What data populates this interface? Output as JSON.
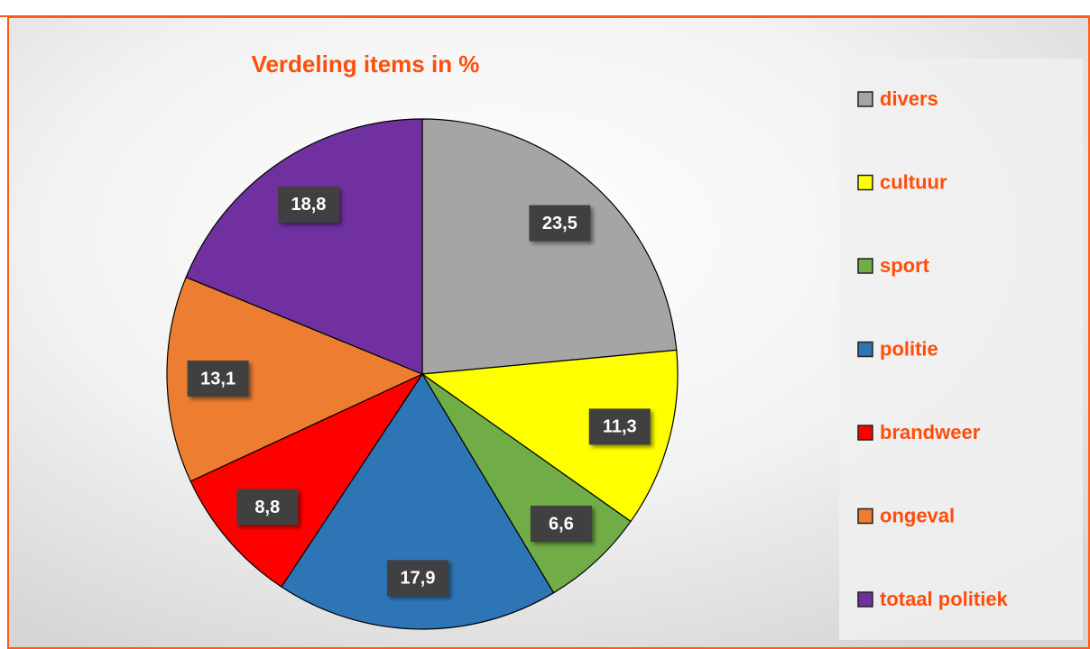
{
  "chart_data": {
    "type": "pie",
    "title": "Verdeling items in %",
    "categories": [
      "divers",
      "cultuur",
      "sport",
      "politie",
      "brandweer",
      "ongeval",
      "totaal politiek"
    ],
    "values": [
      23.5,
      11.3,
      6.6,
      17.9,
      8.8,
      13.1,
      18.8
    ],
    "value_labels": [
      "23,5",
      "11,3",
      "6,6",
      "17,9",
      "8,8",
      "13,1",
      "18,8"
    ],
    "colors": [
      "#a5a5a5",
      "#ffff00",
      "#70ad47",
      "#2e75b6",
      "#ff0000",
      "#ed7d31",
      "#7030a0"
    ],
    "legend": "right"
  }
}
